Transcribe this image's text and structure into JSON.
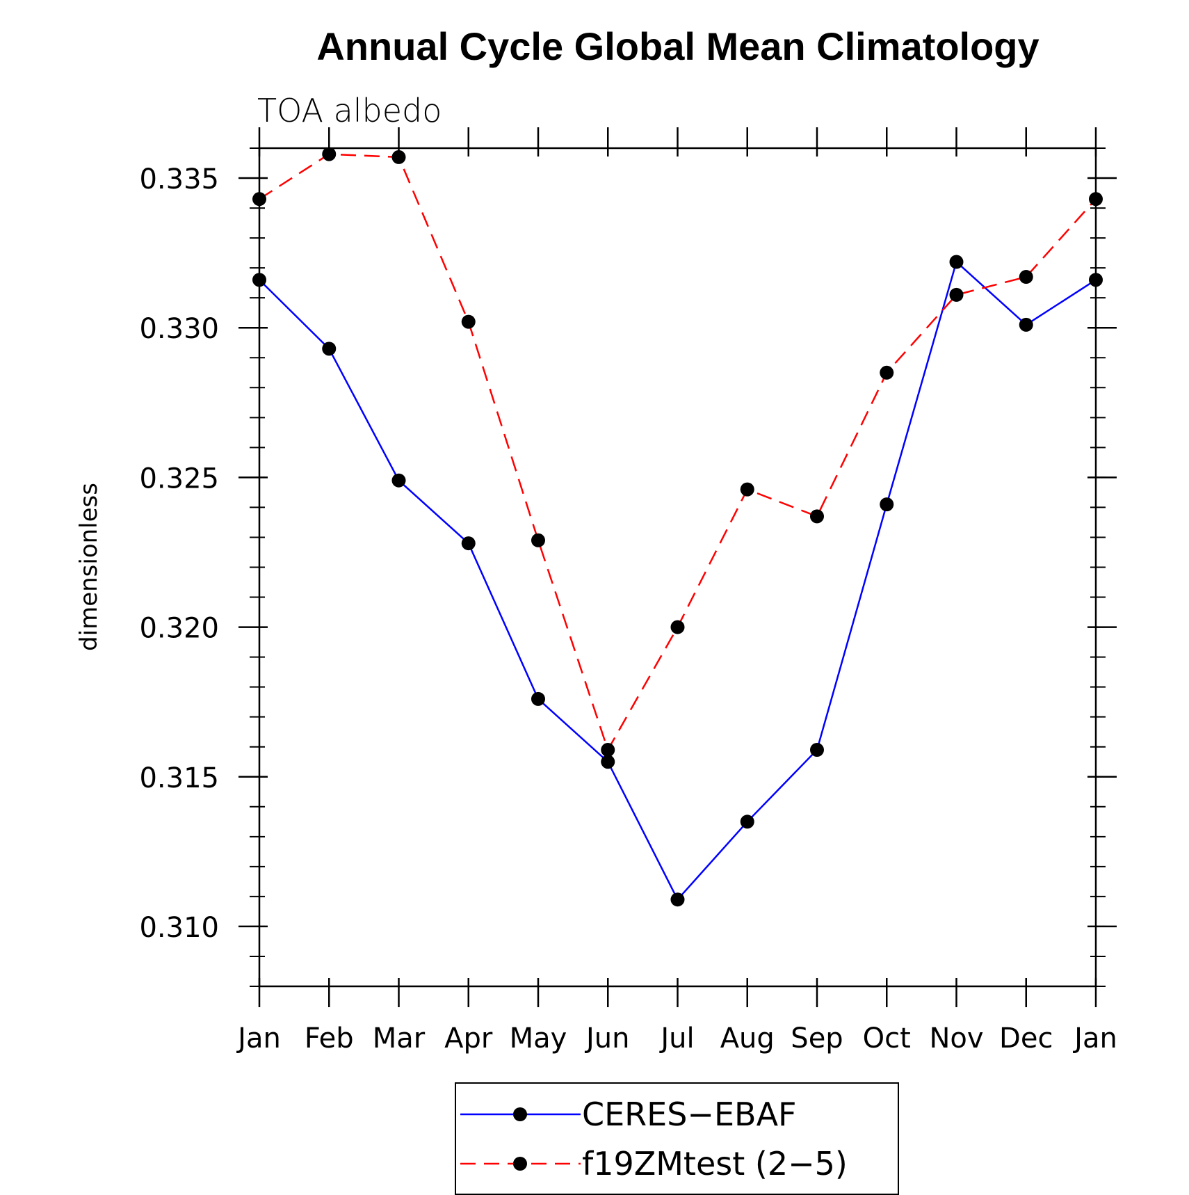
{
  "chart_data": {
    "type": "line",
    "title": "Annual Cycle Global Mean Climatology",
    "subtitle": "TOA albedo",
    "xlabel": "",
    "ylabel": "dimensionless",
    "categories": [
      "Jan",
      "Feb",
      "Mar",
      "Apr",
      "May",
      "Jun",
      "Jul",
      "Aug",
      "Sep",
      "Oct",
      "Nov",
      "Dec",
      "Jan"
    ],
    "ylim": [
      0.308,
      0.336
    ],
    "yticks": [
      "0.310",
      "0.315",
      "0.320",
      "0.325",
      "0.330",
      "0.335"
    ],
    "ytick_values": [
      0.31,
      0.315,
      0.32,
      0.325,
      0.33,
      0.335
    ],
    "grid": false,
    "legend_position": "bottom-center",
    "series": [
      {
        "name": "CERES−EBAF",
        "color": "#0000ff",
        "line_style": "solid",
        "marker": "filled-circle",
        "values": [
          0.3316,
          0.3293,
          0.3249,
          0.3228,
          0.3176,
          0.3155,
          0.3109,
          0.3135,
          0.3159,
          0.3241,
          0.3322,
          0.3301,
          0.3316
        ]
      },
      {
        "name": "f19ZMtest (2−5)",
        "color": "#ff0000",
        "line_style": "dashed",
        "marker": "filled-circle",
        "values": [
          0.3343,
          0.3358,
          0.3357,
          0.3302,
          0.3229,
          0.3159,
          0.32,
          0.3246,
          0.3237,
          0.3285,
          0.3311,
          0.3317,
          0.3343
        ]
      }
    ]
  }
}
